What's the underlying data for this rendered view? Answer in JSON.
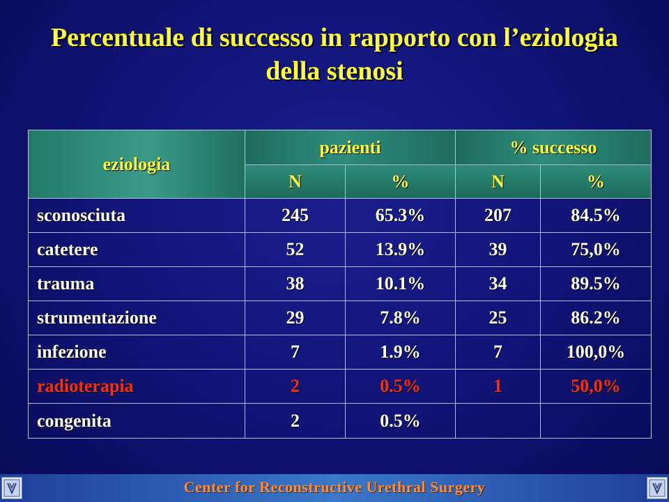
{
  "title": {
    "line1": "Percentuale di successo in rapporto con l’eziologia",
    "line2": "della stenosi"
  },
  "table": {
    "col_eziologia": "eziologia",
    "group_pazienti": "pazienti",
    "group_successo": "% successo",
    "sub_n1": "N",
    "sub_pct1": "%",
    "sub_n2": "N",
    "sub_pct2": "%",
    "rows": [
      {
        "label": "sconosciuta",
        "n": "245",
        "pct": "65.3%",
        "sn": "207",
        "spct": "84.5%"
      },
      {
        "label": "catetere",
        "n": "52",
        "pct": "13.9%",
        "sn": "39",
        "spct": "75,0%"
      },
      {
        "label": "trauma",
        "n": "38",
        "pct": "10.1%",
        "sn": "34",
        "spct": "89.5%"
      },
      {
        "label": "strumentazione",
        "n": "29",
        "pct": "7.8%",
        "sn": "25",
        "spct": "86.2%"
      },
      {
        "label": "infezione",
        "n": "7",
        "pct": "1.9%",
        "sn": "7",
        "spct": "100,0%"
      },
      {
        "label": "radioterapia",
        "n": "2",
        "pct": "0.5%",
        "sn": "1",
        "spct": "50,0%"
      },
      {
        "label": "congenita",
        "n": "2",
        "pct": "0.5%",
        "sn": "",
        "spct": ""
      }
    ],
    "highlight_row_color": "#ff2a12"
  },
  "footer": {
    "text": "Center for Reconstructive Urethral Surgery",
    "logo_left_icon": "center-logo-icon",
    "logo_right_icon": "center-logo-icon"
  }
}
